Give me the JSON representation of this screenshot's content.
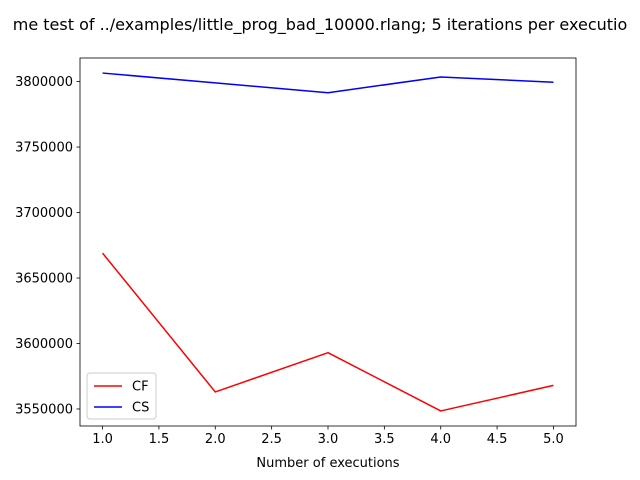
{
  "chart_data": {
    "type": "line",
    "title": "me test of ../examples/little_prog_bad_10000.rlang; 5 iterations per executio",
    "xlabel": "Number of executions",
    "ylabel": "",
    "x": [
      1.0,
      2.0,
      3.0,
      4.0,
      5.0
    ],
    "xlim": [
      0.8,
      5.2
    ],
    "ylim": [
      3537000,
      3818000
    ],
    "xticks": [
      1.0,
      1.5,
      2.0,
      2.5,
      3.0,
      3.5,
      4.0,
      4.5,
      5.0
    ],
    "xtick_labels": [
      "1.0",
      "1.5",
      "2.0",
      "2.5",
      "3.0",
      "3.5",
      "4.0",
      "4.5",
      "5.0"
    ],
    "yticks": [
      3550000,
      3600000,
      3650000,
      3700000,
      3750000,
      3800000
    ],
    "ytick_labels": [
      "3550000",
      "3600000",
      "3650000",
      "3700000",
      "3750000",
      "3800000"
    ],
    "grid": false,
    "legend_position": "lower-left",
    "series": [
      {
        "name": "CF",
        "color": "#ff0000",
        "values": [
          3669000,
          3563000,
          3593000,
          3548500,
          3568000
        ]
      },
      {
        "name": "CS",
        "color": "#0000ff",
        "values": [
          3806500,
          3799000,
          3791500,
          3803500,
          3799500
        ]
      }
    ]
  }
}
